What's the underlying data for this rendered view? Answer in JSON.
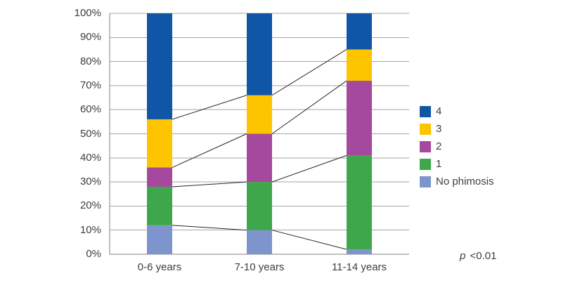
{
  "chart_data": {
    "type": "bar",
    "subtype": "stacked-100-percent",
    "title": "",
    "categories": [
      "0-6 years",
      "7-10 years",
      "11-14 years"
    ],
    "series_order": "bottom-to-top",
    "series": [
      {
        "name": "No phimosis",
        "color": "#7D95CC",
        "values": [
          12,
          10,
          2
        ]
      },
      {
        "name": "1",
        "color": "#3FA74B",
        "values": [
          16,
          20,
          39
        ]
      },
      {
        "name": "2",
        "color": "#A4499E",
        "values": [
          8,
          20,
          31
        ]
      },
      {
        "name": "3",
        "color": "#FDC500",
        "values": [
          20,
          16,
          13
        ]
      },
      {
        "name": "4",
        "color": "#0F56A6",
        "values": [
          44,
          34,
          15
        ]
      }
    ],
    "y_axis": {
      "min": 0,
      "max": 100,
      "step": 10,
      "ticks": [
        {
          "value": 0,
          "label": "0%"
        },
        {
          "value": 10,
          "label": "10%"
        },
        {
          "value": 20,
          "label": "20%"
        },
        {
          "value": 30,
          "label": "30%"
        },
        {
          "value": 40,
          "label": "40%"
        },
        {
          "value": 50,
          "label": "50%"
        },
        {
          "value": 60,
          "label": "60%"
        },
        {
          "value": 70,
          "label": "70%"
        },
        {
          "value": 80,
          "label": "80%"
        },
        {
          "value": 90,
          "label": "90%"
        },
        {
          "value": 100,
          "label": "100%"
        }
      ]
    },
    "legend": {
      "position": "right",
      "items_top_to_bottom": [
        "4",
        "3",
        "2",
        "1",
        "No phimosis"
      ]
    },
    "annotation": {
      "p": "p",
      "value": "<0.01"
    },
    "grid": true,
    "connector_lines_between_stacks": true
  },
  "colors": {
    "background": "#FFFFFF",
    "gridline": "#A6A6A6",
    "axis": "#808080",
    "connector": "#262626",
    "text": "#3E3E3E"
  }
}
